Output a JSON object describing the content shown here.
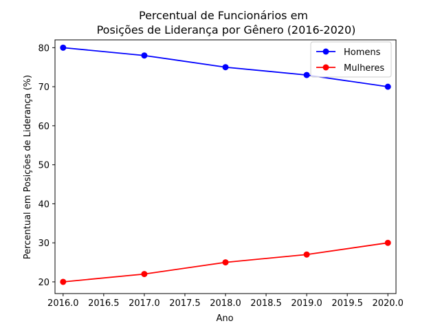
{
  "chart_data": {
    "type": "line",
    "title_lines": [
      "Percentual de Funcionários em",
      "Posições de Liderança por Gênero (2016-2020)"
    ],
    "xlabel": "Ano",
    "ylabel": "Percentual em Posições de Liderança (%)",
    "x": [
      2016,
      2017,
      2018,
      2019,
      2020
    ],
    "series": [
      {
        "name": "Homens",
        "values": [
          80,
          78,
          75,
          73,
          70
        ],
        "color": "#0000ff"
      },
      {
        "name": "Mulheres",
        "values": [
          20,
          22,
          25,
          27,
          30
        ],
        "color": "#ff0000"
      }
    ],
    "xlim": [
      2015.9,
      2020.1
    ],
    "ylim": [
      17,
      82
    ],
    "x_ticks": [
      2016.0,
      2016.5,
      2017.0,
      2017.5,
      2018.0,
      2018.5,
      2019.0,
      2019.5,
      2020.0
    ],
    "x_tick_labels": [
      "2016.0",
      "2016.5",
      "2017.0",
      "2017.5",
      "2018.0",
      "2018.5",
      "2019.0",
      "2019.5",
      "2020.0"
    ],
    "y_ticks": [
      20,
      30,
      40,
      50,
      60,
      70,
      80
    ],
    "y_tick_labels": [
      "20",
      "30",
      "40",
      "50",
      "60",
      "70",
      "80"
    ],
    "grid": false,
    "legend_position": "top-right"
  }
}
